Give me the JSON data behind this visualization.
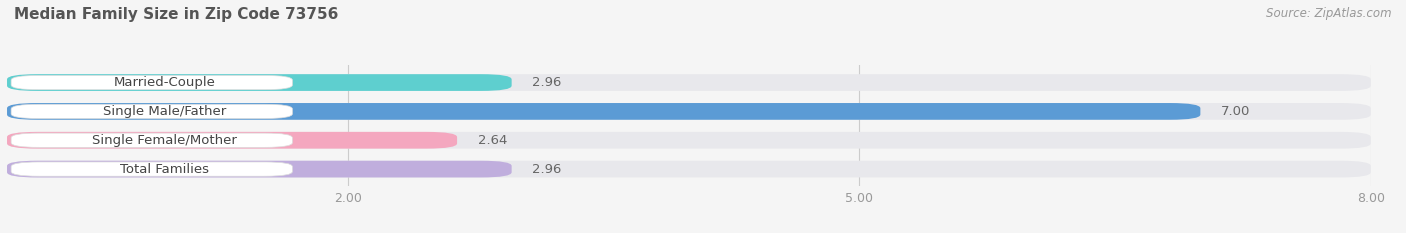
{
  "title": "Median Family Size in Zip Code 73756",
  "source": "Source: ZipAtlas.com",
  "categories": [
    "Married-Couple",
    "Single Male/Father",
    "Single Female/Mother",
    "Total Families"
  ],
  "values": [
    2.96,
    7.0,
    2.64,
    2.96
  ],
  "bar_colors": [
    "#5ecfcf",
    "#5b9bd5",
    "#f4a7bf",
    "#c0aedd"
  ],
  "bar_bg_color": "#e8e8ec",
  "value_labels": [
    "2.96",
    "7.00",
    "2.64",
    "2.96"
  ],
  "value_label_colors": [
    "#666666",
    "#ffffff",
    "#666666",
    "#666666"
  ],
  "xmin": 0.0,
  "xmax": 8.0,
  "xticks": [
    2.0,
    5.0,
    8.0
  ],
  "xtick_labels": [
    "2.00",
    "5.00",
    "8.00"
  ],
  "background_color": "#f5f5f5",
  "bar_height": 0.58,
  "title_fontsize": 11,
  "cat_fontsize": 9.5,
  "tick_fontsize": 9,
  "source_fontsize": 8.5
}
